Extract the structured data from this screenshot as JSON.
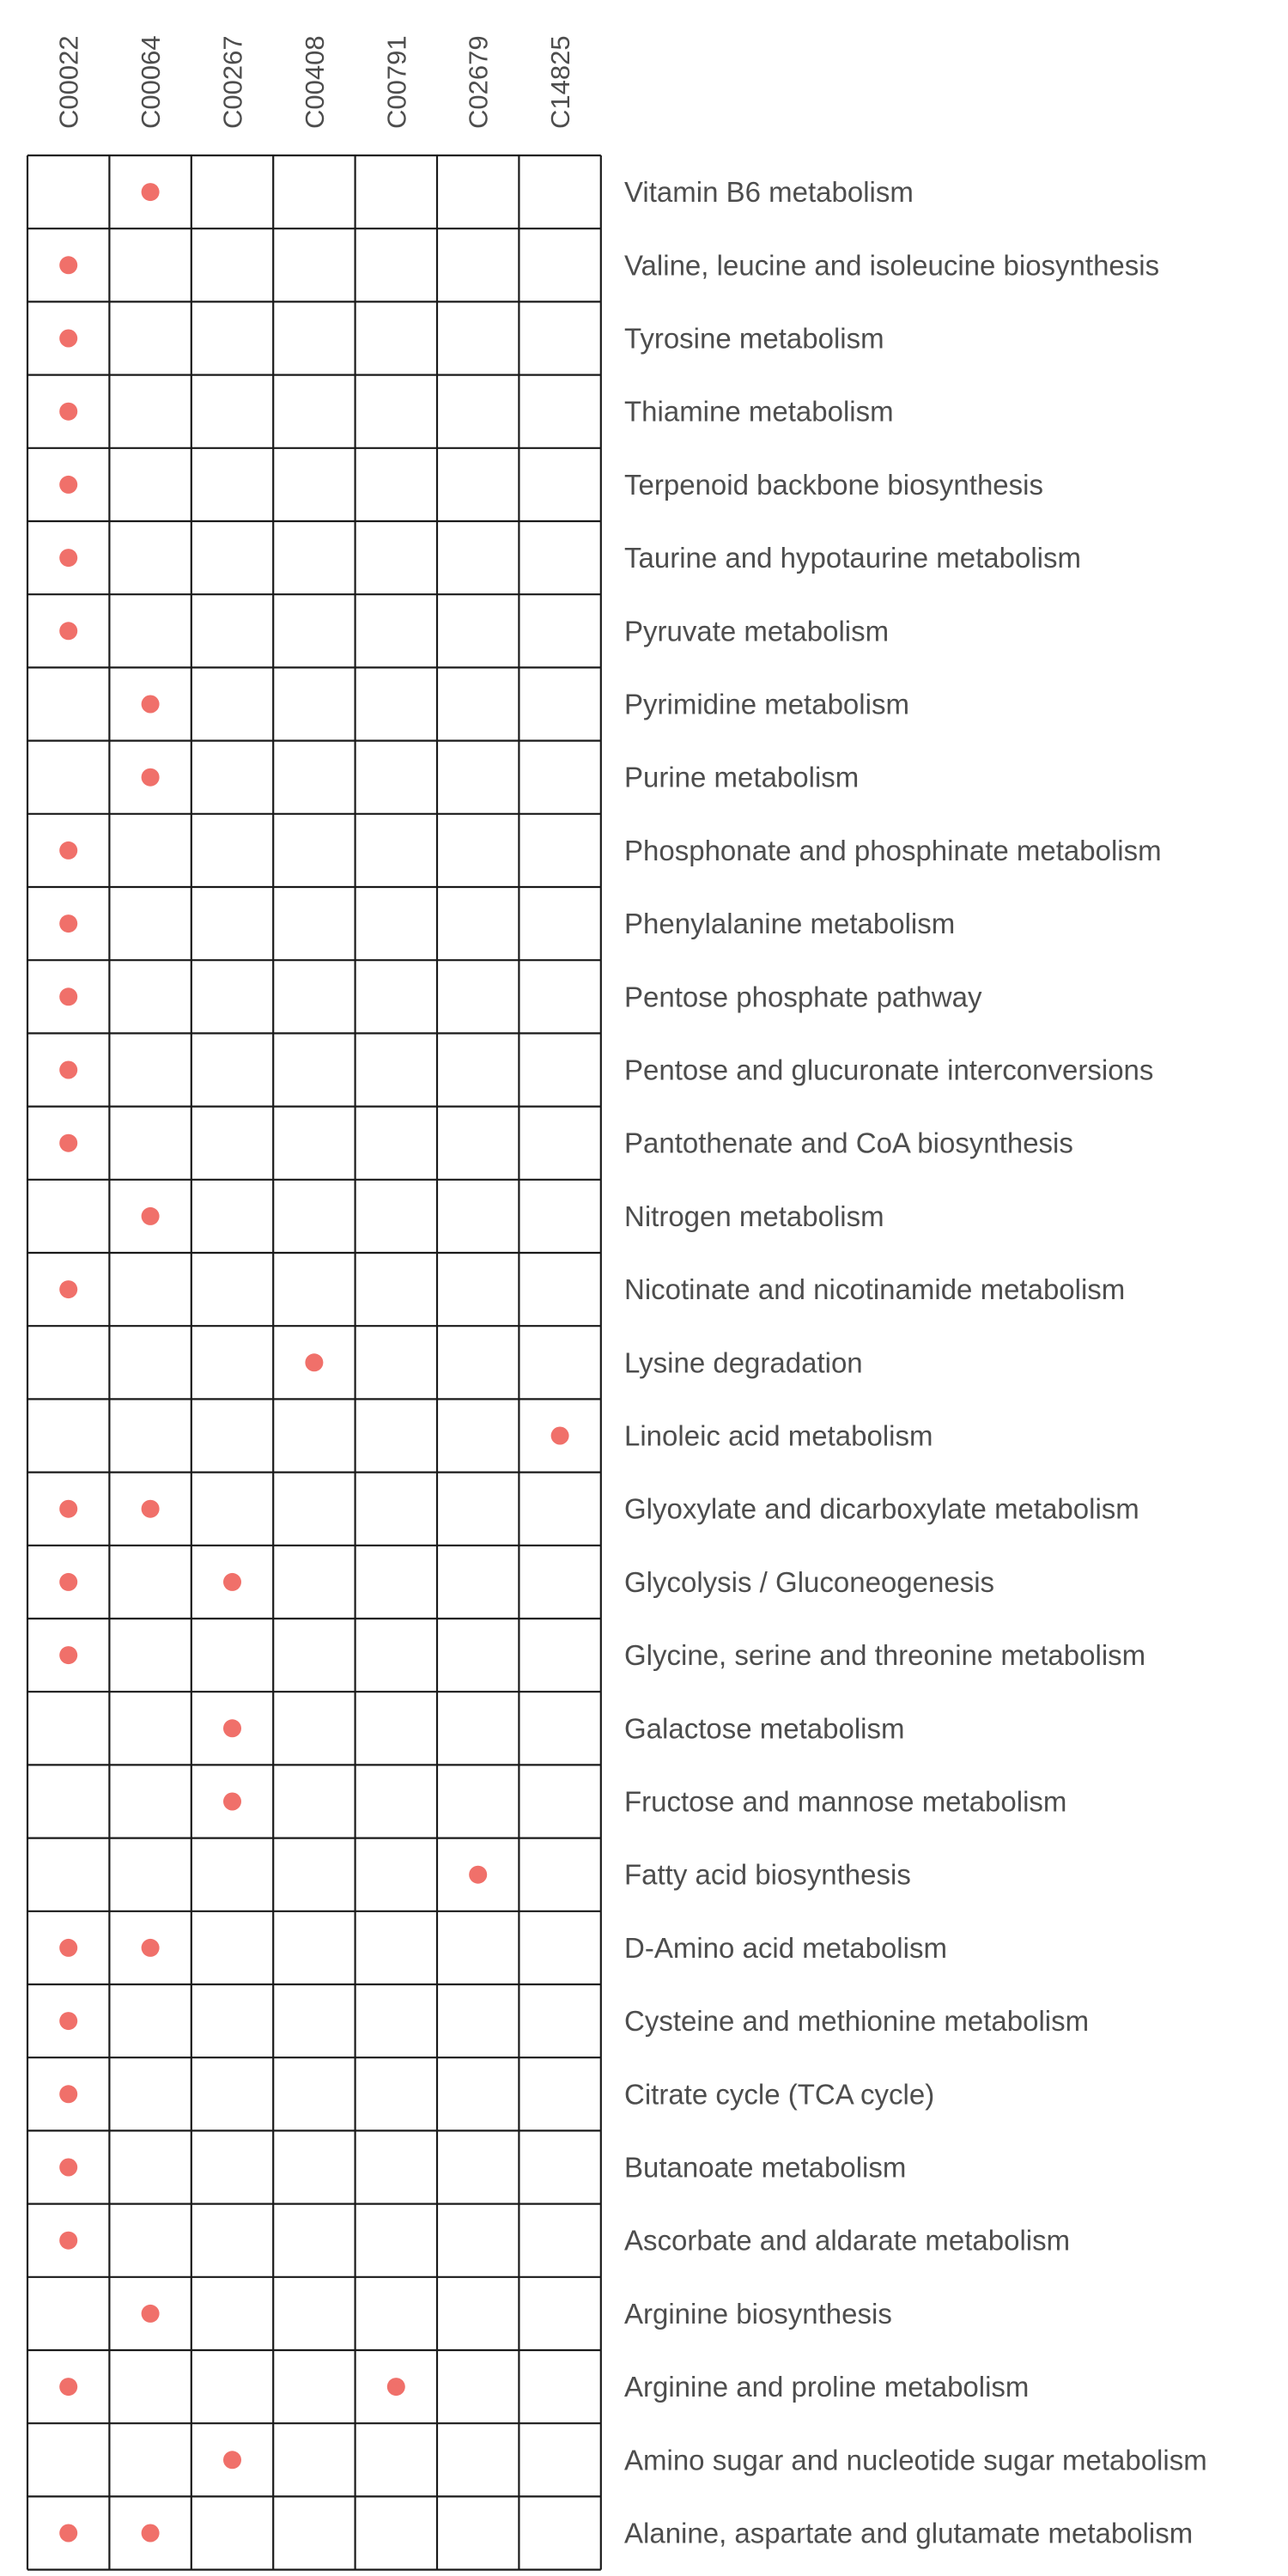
{
  "chart_data": {
    "type": "dot-matrix",
    "grid": true,
    "dot_color": "#f0706a",
    "columns": [
      "C00022",
      "C00064",
      "C00267",
      "C00408",
      "C00791",
      "C02679",
      "C14825"
    ],
    "rows": [
      "Vitamin B6 metabolism",
      "Valine, leucine and isoleucine biosynthesis",
      "Tyrosine metabolism",
      "Thiamine metabolism",
      "Terpenoid backbone biosynthesis",
      "Taurine and hypotaurine metabolism",
      "Pyruvate metabolism",
      "Pyrimidine metabolism",
      "Purine metabolism",
      "Phosphonate and phosphinate metabolism",
      "Phenylalanine metabolism",
      "Pentose phosphate pathway",
      "Pentose and glucuronate interconversions",
      "Pantothenate and CoA biosynthesis",
      "Nitrogen metabolism",
      "Nicotinate and nicotinamide metabolism",
      "Lysine degradation",
      "Linoleic acid metabolism",
      "Glyoxylate and dicarboxylate metabolism",
      "Glycolysis / Gluconeogenesis",
      "Glycine, serine and threonine metabolism",
      "Galactose metabolism",
      "Fructose and mannose metabolism",
      "Fatty acid biosynthesis",
      "D-Amino acid metabolism",
      "Cysteine and methionine metabolism",
      "Citrate cycle (TCA cycle)",
      "Butanoate metabolism",
      "Ascorbate and aldarate metabolism",
      "Arginine biosynthesis",
      "Arginine and proline metabolism",
      "Amino sugar and nucleotide sugar metabolism",
      "Alanine, aspartate and glutamate metabolism"
    ],
    "points": [
      {
        "row": "Vitamin B6 metabolism",
        "column": "C00064"
      },
      {
        "row": "Valine, leucine and isoleucine biosynthesis",
        "column": "C00022"
      },
      {
        "row": "Tyrosine metabolism",
        "column": "C00022"
      },
      {
        "row": "Thiamine metabolism",
        "column": "C00022"
      },
      {
        "row": "Terpenoid backbone biosynthesis",
        "column": "C00022"
      },
      {
        "row": "Taurine and hypotaurine metabolism",
        "column": "C00022"
      },
      {
        "row": "Pyruvate metabolism",
        "column": "C00022"
      },
      {
        "row": "Pyrimidine metabolism",
        "column": "C00064"
      },
      {
        "row": "Purine metabolism",
        "column": "C00064"
      },
      {
        "row": "Phosphonate and phosphinate metabolism",
        "column": "C00022"
      },
      {
        "row": "Phenylalanine metabolism",
        "column": "C00022"
      },
      {
        "row": "Pentose phosphate pathway",
        "column": "C00022"
      },
      {
        "row": "Pentose and glucuronate interconversions",
        "column": "C00022"
      },
      {
        "row": "Pantothenate and CoA biosynthesis",
        "column": "C00022"
      },
      {
        "row": "Nitrogen metabolism",
        "column": "C00064"
      },
      {
        "row": "Nicotinate and nicotinamide metabolism",
        "column": "C00022"
      },
      {
        "row": "Lysine degradation",
        "column": "C00408"
      },
      {
        "row": "Linoleic acid metabolism",
        "column": "C14825"
      },
      {
        "row": "Glyoxylate and dicarboxylate metabolism",
        "column": "C00022"
      },
      {
        "row": "Glyoxylate and dicarboxylate metabolism",
        "column": "C00064"
      },
      {
        "row": "Glycolysis / Gluconeogenesis",
        "column": "C00022"
      },
      {
        "row": "Glycolysis / Gluconeogenesis",
        "column": "C00267"
      },
      {
        "row": "Glycine, serine and threonine metabolism",
        "column": "C00022"
      },
      {
        "row": "Galactose metabolism",
        "column": "C00267"
      },
      {
        "row": "Fructose and mannose metabolism",
        "column": "C00267"
      },
      {
        "row": "Fatty acid biosynthesis",
        "column": "C02679"
      },
      {
        "row": "D-Amino acid metabolism",
        "column": "C00022"
      },
      {
        "row": "D-Amino acid metabolism",
        "column": "C00064"
      },
      {
        "row": "Cysteine and methionine metabolism",
        "column": "C00022"
      },
      {
        "row": "Citrate cycle (TCA cycle)",
        "column": "C00022"
      },
      {
        "row": "Butanoate metabolism",
        "column": "C00022"
      },
      {
        "row": "Ascorbate and aldarate metabolism",
        "column": "C00022"
      },
      {
        "row": "Arginine biosynthesis",
        "column": "C00064"
      },
      {
        "row": "Arginine and proline metabolism",
        "column": "C00022"
      },
      {
        "row": "Arginine and proline metabolism",
        "column": "C00791"
      },
      {
        "row": "Amino sugar and nucleotide sugar metabolism",
        "column": "C00267"
      },
      {
        "row": "Alanine, aspartate and glutamate metabolism",
        "column": "C00022"
      },
      {
        "row": "Alanine, aspartate and glutamate metabolism",
        "column": "C00064"
      }
    ]
  }
}
